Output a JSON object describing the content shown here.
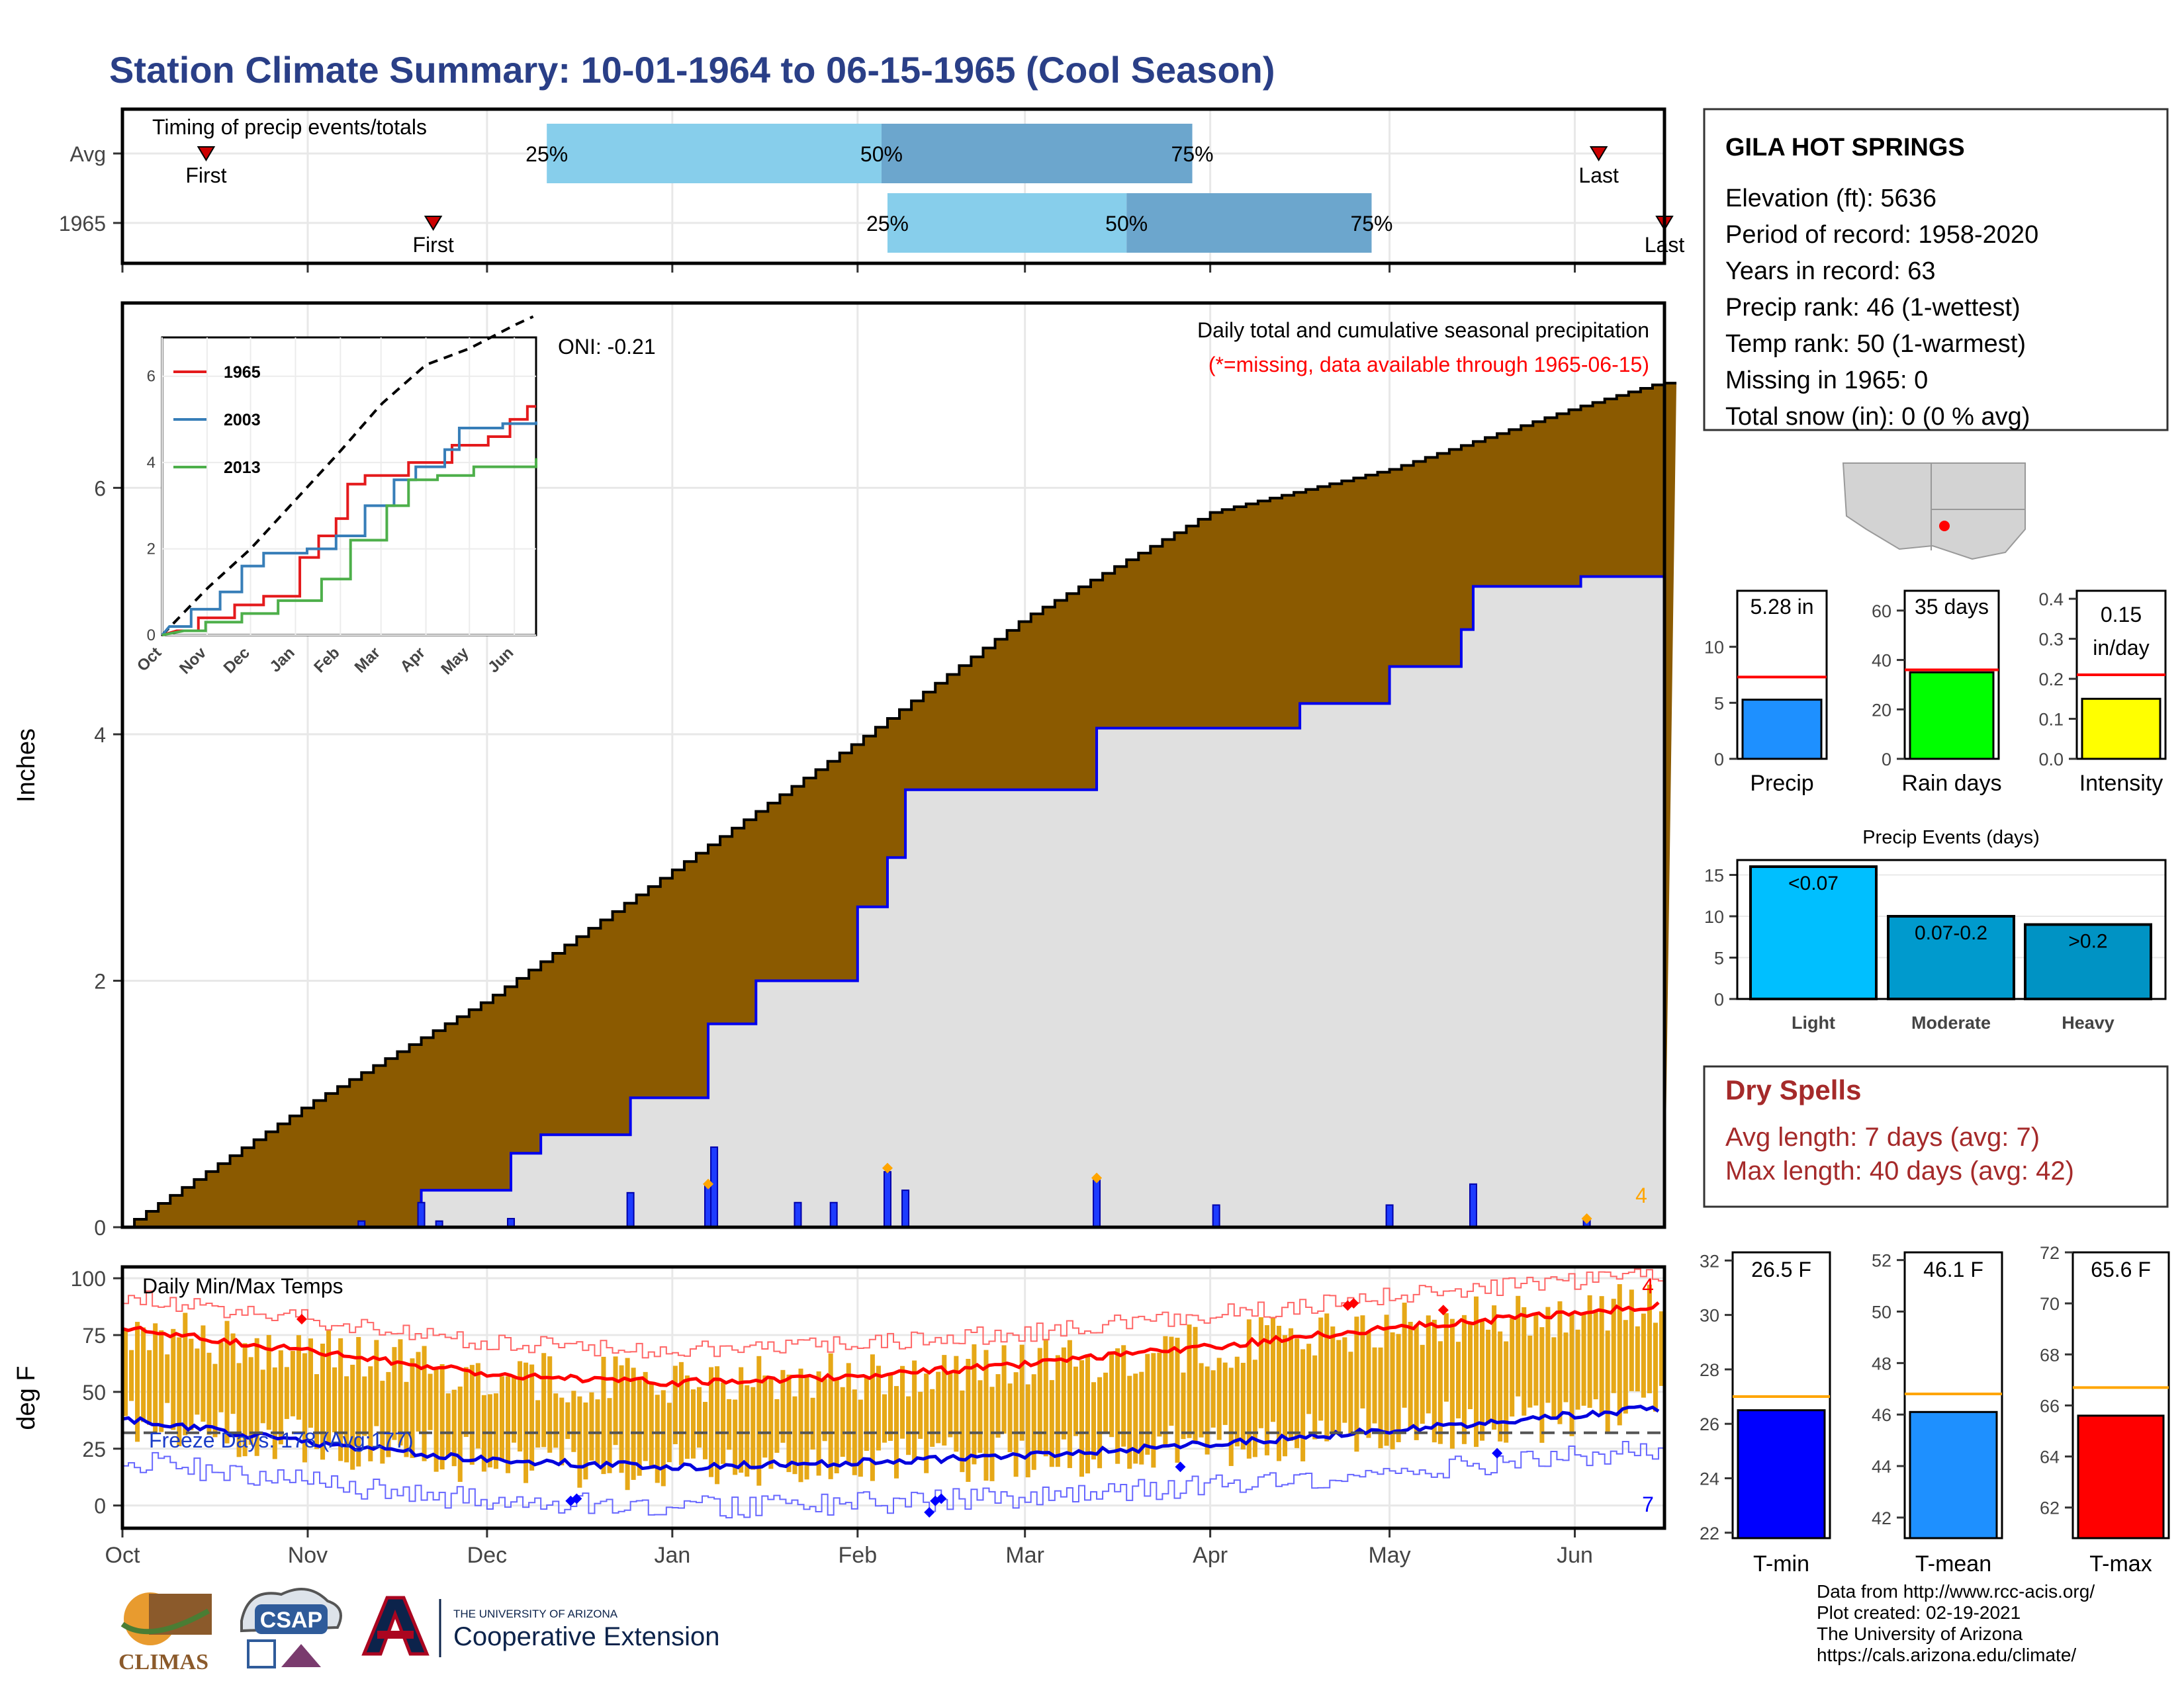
{
  "title": "Station Climate Summary: 10-01-1964 to 06-15-1965 (Cool Season)",
  "months": [
    "Oct",
    "Nov",
    "Dec",
    "Jan",
    "Feb",
    "Mar",
    "Apr",
    "May",
    "Jun"
  ],
  "timing": {
    "title": "Timing of precip events/totals",
    "rows": [
      {
        "label": "Avg",
        "first_label": "First",
        "last_label": "Last",
        "first_day": 14,
        "last_day": 247,
        "p25_day": 71,
        "p50_day": 127,
        "p75_day": 179,
        "p25_label": "25%",
        "p50_label": "50%",
        "p75_label": "75%"
      },
      {
        "label": "1965",
        "first_label": "First",
        "last_label": "Last",
        "first_day": 52,
        "last_day": 258,
        "p25_day": 128,
        "p50_day": 168,
        "p75_day": 209,
        "p25_label": "25%",
        "p50_label": "50%",
        "p75_label": "75%"
      }
    ]
  },
  "precip": {
    "ylabel": "Inches",
    "note": "Daily total and cumulative seasonal precipitation",
    "missing_note": "(*=missing, data available through 1965-06-15)",
    "oni": "ONI: -0.21",
    "corner_count": "4",
    "yticks": [
      "0",
      "2",
      "4",
      "6"
    ],
    "ylim": [
      0,
      7.5
    ]
  },
  "inset": {
    "yticks": [
      "0",
      "2",
      "4",
      "6"
    ],
    "xticks": [
      "Oct",
      "Nov",
      "Dec",
      "Jan",
      "Feb",
      "Mar",
      "Apr",
      "May",
      "Jun"
    ],
    "legend": [
      {
        "name": "1965",
        "color": "#e41a1c"
      },
      {
        "name": "2003",
        "color": "#377eb8"
      },
      {
        "name": "2013",
        "color": "#4daf4a"
      }
    ]
  },
  "temps": {
    "title": "Daily Min/Max Temps",
    "ylabel": "deg F",
    "freeze_text": "Freeze Days: 178 (Avg:177)",
    "yticks": [
      "0",
      "25",
      "50",
      "75",
      "100"
    ],
    "max_count": "4",
    "min_count": "7"
  },
  "station": {
    "name": "GILA HOT SPRINGS",
    "lines": [
      "Elevation (ft): 5636",
      "Period of record: 1958-2020",
      "Years in record: 63",
      "Precip rank: 46 (1-wettest)",
      "Temp rank: 50 (1-warmest)",
      "Missing in 1965: 0",
      "Total snow (in): 0 (0 % avg)"
    ]
  },
  "summary_bars": [
    {
      "label": "Precip",
      "value_text": "5.28 in",
      "value": 5.28,
      "avg": 7.3,
      "ymax": 15,
      "yticks": [
        "0",
        "5",
        "10"
      ],
      "tickvals": [
        0,
        5,
        10
      ],
      "color": "#1e90ff"
    },
    {
      "label": "Rain days",
      "value_text": "35 days",
      "value": 35,
      "avg": 36,
      "ymax": 68,
      "yticks": [
        "0",
        "20",
        "40",
        "60"
      ],
      "tickvals": [
        0,
        20,
        40,
        60
      ],
      "color": "#00ff00"
    },
    {
      "label": "Intensity",
      "value_text": "0.15 in/day",
      "value": 0.15,
      "avg": 0.21,
      "ymax": 0.42,
      "yticks": [
        "0.0",
        "0.1",
        "0.2",
        "0.3",
        "0.4"
      ],
      "tickvals": [
        0,
        0.1,
        0.2,
        0.3,
        0.4
      ],
      "color": "#ffff00"
    }
  ],
  "events": {
    "title": "Precip Events (days)",
    "yticks": [
      "0",
      "5",
      "10",
      "15"
    ],
    "bars": [
      {
        "label": "Light",
        "value": 16,
        "text": "<0.07",
        "color": "#00bfff"
      },
      {
        "label": "Moderate",
        "value": 10,
        "text": "0.07-0.2",
        "color": "#009acd"
      },
      {
        "label": "Heavy",
        "value": 9,
        "text": ">0.2",
        "color": "#0093c4"
      }
    ]
  },
  "dry_spells": {
    "title": "Dry Spells",
    "avg_line": "Avg length: 7 days (avg: 7)",
    "max_line": "Max length: 40 days (avg: 42)"
  },
  "temp_bars": [
    {
      "label": "T-min",
      "value_text": "26.5 F",
      "value": 26.5,
      "avg": 27.0,
      "ymin": 21.8,
      "ymax": 32.3,
      "yticks": [
        "22",
        "24",
        "26",
        "28",
        "30",
        "32"
      ],
      "tickvals": [
        22,
        24,
        26,
        28,
        30,
        32
      ],
      "color": "#0000ff"
    },
    {
      "label": "T-mean",
      "value_text": "46.1 F",
      "value": 46.1,
      "avg": 46.8,
      "ymin": 41.2,
      "ymax": 52.3,
      "yticks": [
        "42",
        "44",
        "46",
        "48",
        "50",
        "52"
      ],
      "tickvals": [
        42,
        44,
        46,
        48,
        50,
        52
      ],
      "color": "#1e90ff"
    },
    {
      "label": "T-max",
      "value_text": "65.6 F",
      "value": 65.6,
      "avg": 66.7,
      "ymin": 60.8,
      "ymax": 72.0,
      "yticks": [
        "62",
        "64",
        "66",
        "68",
        "70",
        "72"
      ],
      "tickvals": [
        62,
        64,
        66,
        68,
        70,
        72
      ],
      "color": "#ff0000"
    }
  ],
  "footer": {
    "lines": [
      "Data from http://www.rcc-acis.org/",
      "Plot created: 02-19-2021",
      "The University of Arizona",
      "https://cals.arizona.edu/climate/"
    ]
  },
  "logos": {
    "climas": "CLIMAS",
    "csap": "CSAP",
    "ua_top": "THE UNIVERSITY OF ARIZONA",
    "ua_bottom": "Cooperative Extension"
  },
  "chart_data": {
    "type": "area",
    "title": "Daily total and cumulative seasonal precipitation",
    "xlabel": "",
    "ylabel": "Inches",
    "x_range": [
      "1964-10-01",
      "1965-06-15"
    ],
    "ylim": [
      0,
      7.5
    ],
    "avg_cumulative": [
      {
        "date": "1964-10-01",
        "value": 0.0
      },
      {
        "date": "1964-11-01",
        "value": 1.0
      },
      {
        "date": "1964-12-01",
        "value": 1.85
      },
      {
        "date": "1965-01-01",
        "value": 2.9
      },
      {
        "date": "1965-02-01",
        "value": 3.95
      },
      {
        "date": "1965-03-01",
        "value": 4.95
      },
      {
        "date": "1965-04-01",
        "value": 5.8
      },
      {
        "date": "1965-05-01",
        "value": 6.15
      },
      {
        "date": "1965-06-01",
        "value": 6.65
      },
      {
        "date": "1965-06-15",
        "value": 6.85
      }
    ],
    "cumulative_1965": [
      {
        "date": "1964-11-10",
        "value": 0.0
      },
      {
        "date": "1964-11-20",
        "value": 0.3
      },
      {
        "date": "1964-12-05",
        "value": 0.6
      },
      {
        "date": "1964-12-10",
        "value": 0.75
      },
      {
        "date": "1964-12-25",
        "value": 1.05
      },
      {
        "date": "1965-01-07",
        "value": 1.65
      },
      {
        "date": "1965-01-15",
        "value": 2.0
      },
      {
        "date": "1965-02-01",
        "value": 2.6
      },
      {
        "date": "1965-02-06",
        "value": 3.0
      },
      {
        "date": "1965-02-09",
        "value": 3.55
      },
      {
        "date": "1965-03-13",
        "value": 4.05
      },
      {
        "date": "1965-04-16",
        "value": 4.25
      },
      {
        "date": "1965-05-01",
        "value": 4.55
      },
      {
        "date": "1965-05-13",
        "value": 4.85
      },
      {
        "date": "1965-05-15",
        "value": 5.2
      },
      {
        "date": "1965-06-02",
        "value": 5.28
      }
    ],
    "daily_precip": [
      {
        "date": "1964-11-10",
        "value": 0.05
      },
      {
        "date": "1964-11-20",
        "value": 0.2
      },
      {
        "date": "1964-11-23",
        "value": 0.05
      },
      {
        "date": "1964-12-05",
        "value": 0.07
      },
      {
        "date": "1964-12-25",
        "value": 0.28
      },
      {
        "date": "1965-01-07",
        "value": 0.35
      },
      {
        "date": "1965-01-08",
        "value": 0.65
      },
      {
        "date": "1965-01-22",
        "value": 0.2
      },
      {
        "date": "1965-01-28",
        "value": 0.2
      },
      {
        "date": "1965-02-06",
        "value": 0.45
      },
      {
        "date": "1965-02-09",
        "value": 0.3
      },
      {
        "date": "1965-03-13",
        "value": 0.38
      },
      {
        "date": "1965-04-02",
        "value": 0.18
      },
      {
        "date": "1965-05-01",
        "value": 0.18
      },
      {
        "date": "1965-05-15",
        "value": 0.35
      },
      {
        "date": "1965-06-03",
        "value": 0.07
      }
    ],
    "temps": {
      "ylim": [
        -10,
        105
      ],
      "freeze_line": 32,
      "avg_max_approx": [
        {
          "date": "1964-10-01",
          "value": 78
        },
        {
          "date": "1964-11-01",
          "value": 68
        },
        {
          "date": "1964-12-01",
          "value": 58
        },
        {
          "date": "1965-01-01",
          "value": 54
        },
        {
          "date": "1965-02-01",
          "value": 57
        },
        {
          "date": "1965-03-01",
          "value": 62
        },
        {
          "date": "1965-04-01",
          "value": 70
        },
        {
          "date": "1965-05-01",
          "value": 78
        },
        {
          "date": "1965-06-15",
          "value": 88
        }
      ],
      "avg_min_approx": [
        {
          "date": "1964-10-01",
          "value": 38
        },
        {
          "date": "1964-11-01",
          "value": 28
        },
        {
          "date": "1964-12-01",
          "value": 20
        },
        {
          "date": "1965-01-01",
          "value": 17
        },
        {
          "date": "1965-02-01",
          "value": 19
        },
        {
          "date": "1965-03-01",
          "value": 22
        },
        {
          "date": "1965-04-01",
          "value": 27
        },
        {
          "date": "1965-05-01",
          "value": 33
        },
        {
          "date": "1965-06-15",
          "value": 43
        }
      ]
    }
  }
}
